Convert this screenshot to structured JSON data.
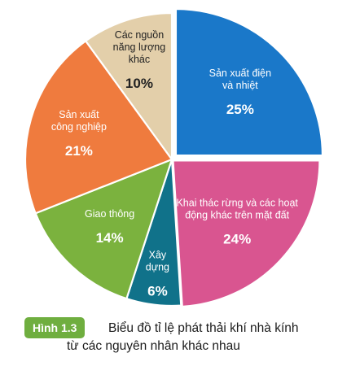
{
  "chart_data": {
    "type": "pie",
    "slices": [
      {
        "label_lines": [
          "Sản xuất điện",
          "và nhiệt"
        ],
        "value": 25,
        "value_label": "25%",
        "color": "#1a78c9",
        "text_color": "#ffffff"
      },
      {
        "label_lines": [
          "Khai thác rừng và các hoạt",
          "động khác trên mặt đất"
        ],
        "value": 24,
        "value_label": "24%",
        "color": "#d95590",
        "text_color": "#ffffff"
      },
      {
        "label_lines": [
          "Xây",
          "dựng"
        ],
        "value": 6,
        "value_label": "6%",
        "color": "#10728a",
        "text_color": "#ffffff"
      },
      {
        "label_lines": [
          "Giao thông"
        ],
        "value": 14,
        "value_label": "14%",
        "color": "#7bb23e",
        "text_color": "#ffffff"
      },
      {
        "label_lines": [
          "Sản xuất",
          "công nghiệp"
        ],
        "value": 21,
        "value_label": "21%",
        "color": "#ef7b3e",
        "text_color": "#ffffff"
      },
      {
        "label_lines": [
          "Các nguồn",
          "năng lượng",
          "khác"
        ],
        "value": 10,
        "value_label": "10%",
        "color": "#e3cfaa",
        "text_color": "#222222"
      }
    ]
  },
  "caption": {
    "figure_label": "Hình 1.3",
    "text_line1": "Biểu đồ tỉ lệ phát thải khí nhà kính",
    "text_line2": "từ các nguyên nhân khác nhau",
    "badge_color": "#6fae3f"
  }
}
